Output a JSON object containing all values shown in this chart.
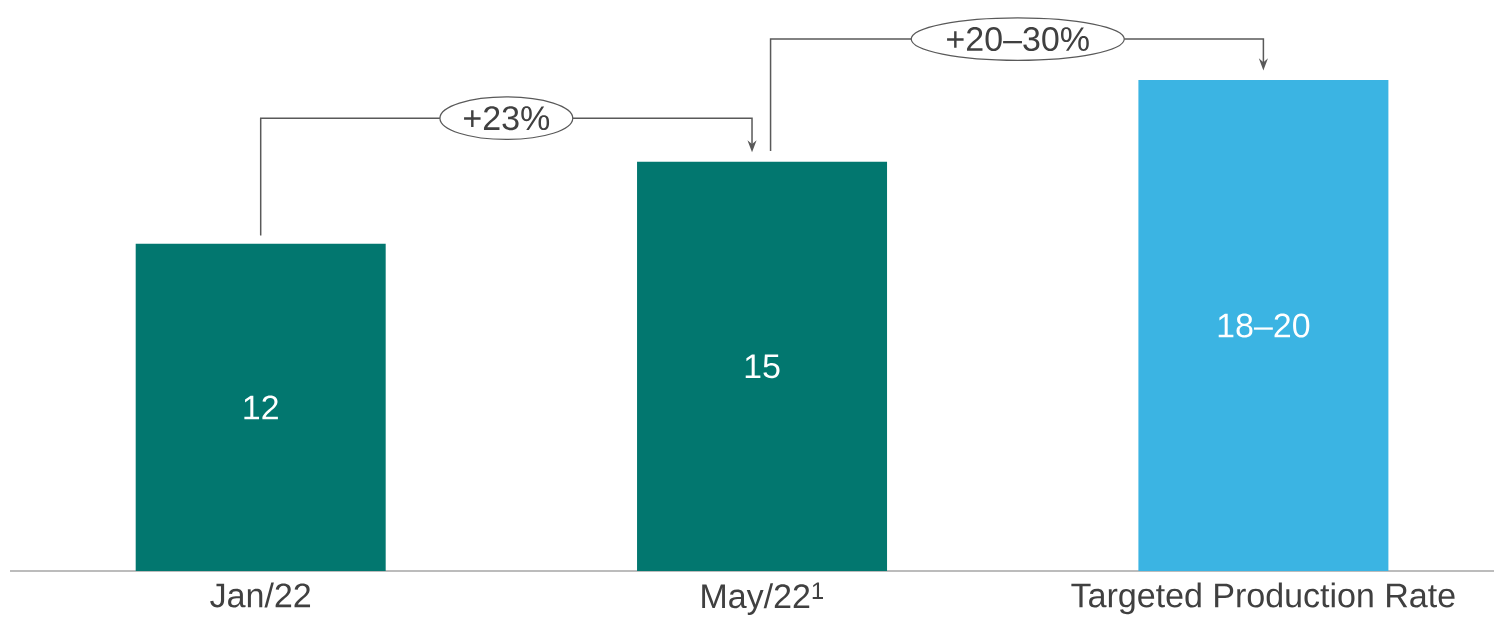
{
  "chart_data": {
    "type": "bar",
    "categories": [
      "Jan/22",
      "May/22$^{1}$",
      "Targeted Production Rate"
    ],
    "values": [
      12,
      15,
      18
    ],
    "value_labels": [
      "12",
      "15",
      "18–20"
    ],
    "colors": [
      "#02776f",
      "#02776f",
      "#3bb4e3"
    ],
    "annotations": [
      "+23%",
      "+20–30%"
    ]
  }
}
